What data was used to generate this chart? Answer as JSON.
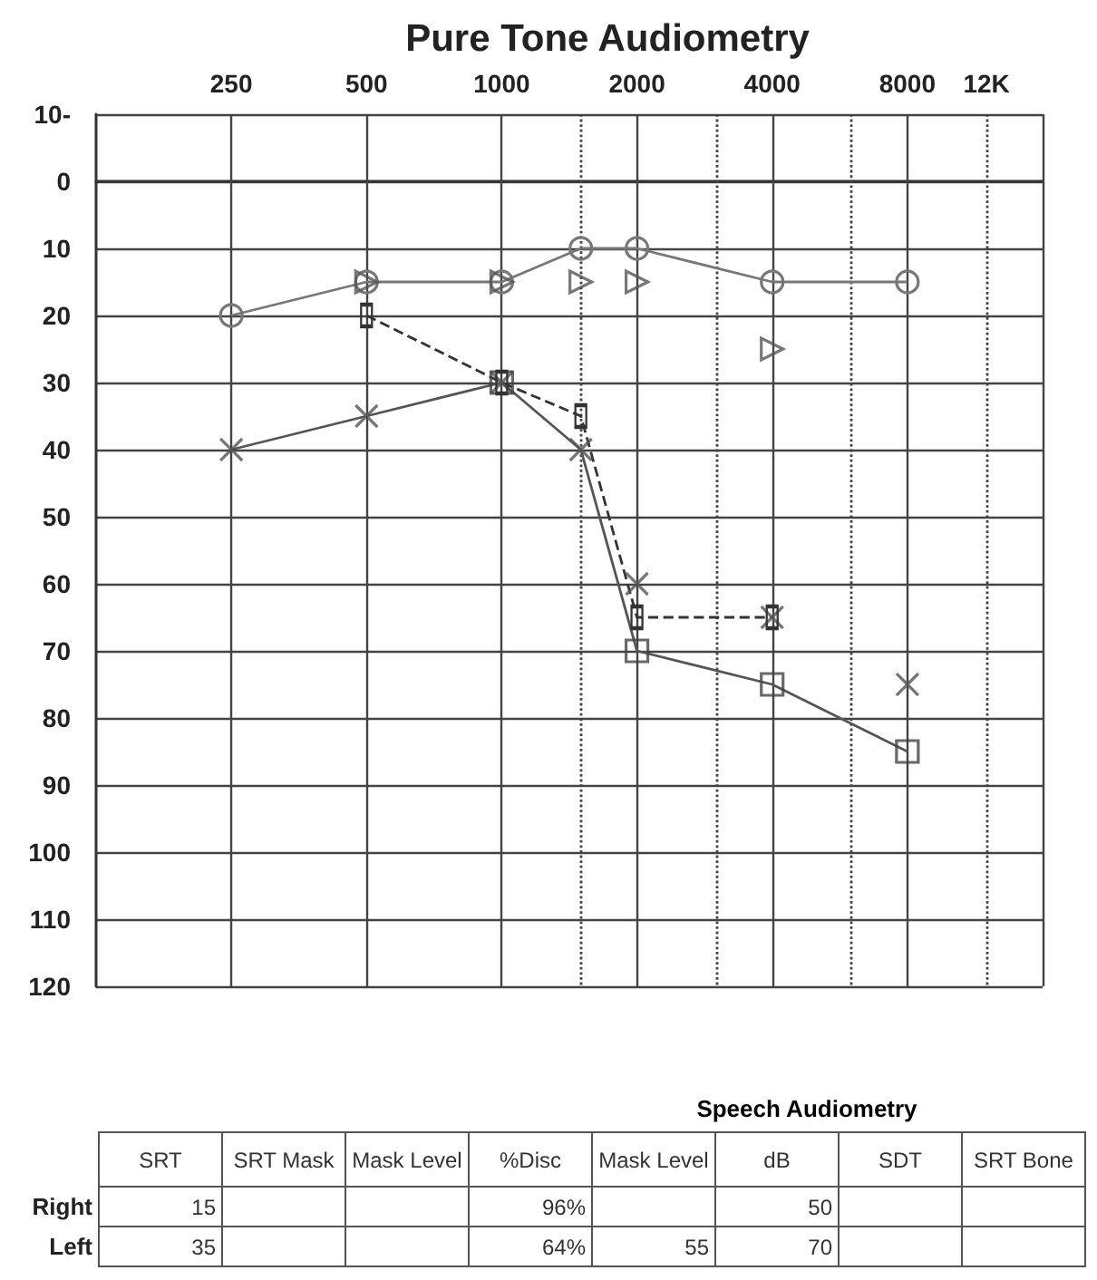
{
  "chart_data": [
    {
      "type": "line",
      "title": "Pure Tone Audiometry",
      "xlim": [
        125,
        16000
      ],
      "xticks": [
        250,
        500,
        1000,
        2000,
        4000,
        8000,
        {
          "value": 12000,
          "label": "12K"
        }
      ],
      "ylim": [
        120,
        -10
      ],
      "yticks": [
        {
          "value": -10,
          "label": "10-"
        },
        0,
        10,
        20,
        30,
        40,
        50,
        60,
        70,
        80,
        90,
        100,
        110,
        120
      ],
      "log": "x",
      "grid": true,
      "ref_lines": [
        {
          "axis": "x",
          "value": 1500,
          "line_style": "dotted",
          "color": "#444444"
        },
        {
          "axis": "x",
          "value": 3000,
          "line_style": "dotted",
          "color": "#444444"
        },
        {
          "axis": "x",
          "value": 6000,
          "line_style": "dotted",
          "color": "#444444"
        },
        {
          "axis": "x",
          "value": 12000,
          "line_style": "dotted",
          "color": "#444444"
        }
      ],
      "series": [
        {
          "type": "line",
          "marker": "circle",
          "line_style": "solid",
          "color": "#777777",
          "x": [
            250,
            500,
            1000,
            1500,
            2000,
            4000,
            8000
          ],
          "values": [
            20,
            15,
            15,
            10,
            10,
            15,
            15
          ]
        },
        {
          "type": "scatter",
          "marker": "triangle",
          "color": "#555555",
          "x": [
            500,
            1000,
            1500,
            2000,
            4000
          ],
          "values": [
            15,
            15,
            15,
            15,
            25
          ]
        },
        {
          "type": "line",
          "marker": "none",
          "line_style": "solid",
          "color": "#555555",
          "x": [
            250,
            500,
            1000,
            1500,
            2000,
            4000,
            8000
          ],
          "values": [
            40,
            35,
            30,
            40,
            70,
            75,
            85
          ]
        },
        {
          "type": "scatter",
          "marker": "cross",
          "color": "#555555",
          "x": [
            250,
            500,
            1000,
            1500,
            2000,
            4000,
            8000
          ],
          "values": [
            40,
            35,
            30,
            40,
            60,
            65,
            75
          ]
        },
        {
          "type": "scatter",
          "marker": "square",
          "color": "#444444",
          "x": [
            1000,
            2000,
            4000,
            8000
          ],
          "values": [
            30,
            70,
            75,
            85
          ]
        },
        {
          "type": "line",
          "marker": "square",
          "line_style": "dashed",
          "color": "#333333",
          "x": [
            500,
            1000,
            1500,
            2000,
            4000
          ],
          "values": [
            20,
            30,
            35,
            65,
            65
          ]
        }
      ]
    },
    {
      "type": "other",
      "title": "Speech Audiometry",
      "categories": [
        "SRT",
        "SRT Mask",
        "Mask Level",
        "%Disc",
        "Mask Level",
        "dB",
        "SDT",
        "SRT Bone"
      ],
      "y_categories": [
        "Right",
        "Left"
      ],
      "cell_labels": [
        [
          "15",
          null,
          null,
          "96%",
          null,
          "50",
          null,
          null
        ],
        [
          "35",
          null,
          null,
          "64%",
          "55",
          "70",
          null,
          null
        ]
      ]
    }
  ]
}
